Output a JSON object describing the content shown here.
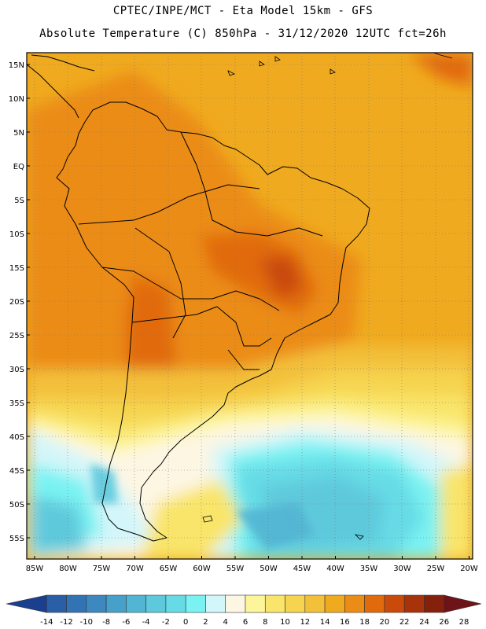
{
  "header": {
    "line1": "CPTEC/INPE/MCT -  Eta Model 15km - GFS",
    "line2": "Absolute Temperature (C) 850hPa - 31/12/2020 12UTC fct=26h"
  },
  "map": {
    "lat_labels": [
      "15N",
      "10N",
      "5N",
      "EQ",
      "5S",
      "10S",
      "15S",
      "20S",
      "25S",
      "30S",
      "35S",
      "40S",
      "45S",
      "50S",
      "55S"
    ],
    "lon_labels": [
      "85W",
      "80W",
      "75W",
      "70W",
      "65W",
      "60W",
      "55W",
      "50W",
      "45W",
      "40W",
      "35W",
      "30W",
      "25W",
      "20W"
    ]
  },
  "colorbar": {
    "labels": [
      "-14",
      "-12",
      "-10",
      "-8",
      "-6",
      "-4",
      "-2",
      "0",
      "2",
      "4",
      "6",
      "8",
      "10",
      "12",
      "14",
      "16",
      "18",
      "20",
      "22",
      "24",
      "26",
      "28"
    ],
    "colors": [
      "#1a3f8e",
      "#2a5ea6",
      "#3274b3",
      "#3d88bf",
      "#47a0c9",
      "#52b5d3",
      "#5ec9dc",
      "#66dbe6",
      "#7af2f2",
      "#d3f6fa",
      "#fdf6e3",
      "#fdf59a",
      "#f9e56b",
      "#f6d450",
      "#f3c03a",
      "#f0aa1f",
      "#eb8c16",
      "#e16a0d",
      "#c94a0a",
      "#a8330a",
      "#84200b",
      "#6e1418"
    ]
  }
}
